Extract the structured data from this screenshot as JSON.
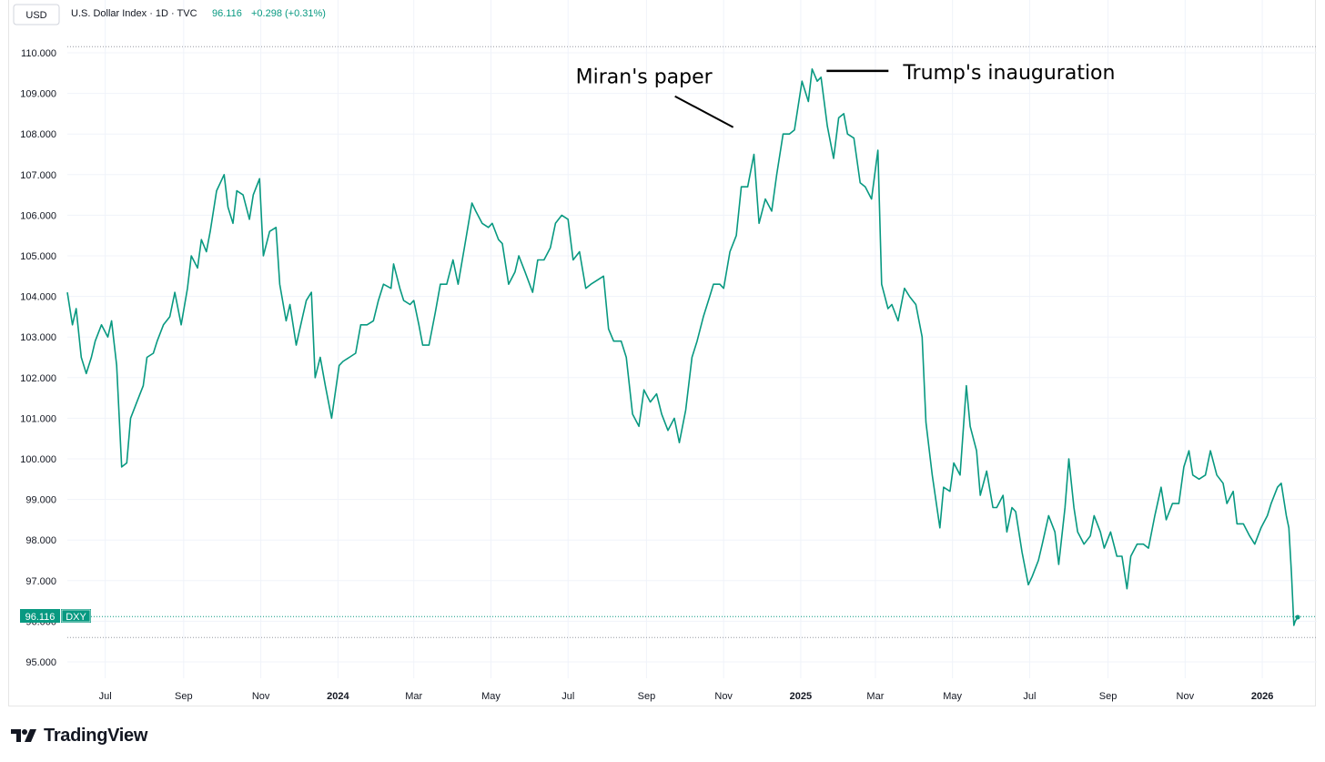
{
  "legend": {
    "currency": "USD",
    "symbol_info": "U.S. Dollar Index · 1D · TVC",
    "last": "96.116",
    "change": "+0.298 (+0.31%)"
  },
  "price_tag": {
    "value": "96.116",
    "ticker": "DXY"
  },
  "footer": {
    "brand": "TradingView"
  },
  "colors": {
    "line": "#089981",
    "text": "#131722",
    "grid": "#f0f3fa",
    "dotted": "#9598a1"
  },
  "chart_data": {
    "type": "line",
    "title": "U.S. Dollar Index · 1D · TVC",
    "series": [
      {
        "name": "DXY",
        "x_start": "2023-06-01",
        "x_end": "2026-01-29",
        "points": [
          [
            "2023-06-01",
            104.1
          ],
          [
            "2023-06-05",
            103.3
          ],
          [
            "2023-06-08",
            103.7
          ],
          [
            "2023-06-12",
            102.5
          ],
          [
            "2023-06-16",
            102.1
          ],
          [
            "2023-06-20",
            102.5
          ],
          [
            "2023-06-23",
            102.9
          ],
          [
            "2023-06-28",
            103.3
          ],
          [
            "2023-07-03",
            103.0
          ],
          [
            "2023-07-06",
            103.4
          ],
          [
            "2023-07-10",
            102.3
          ],
          [
            "2023-07-14",
            99.8
          ],
          [
            "2023-07-18",
            99.9
          ],
          [
            "2023-07-21",
            101.0
          ],
          [
            "2023-07-26",
            101.4
          ],
          [
            "2023-07-31",
            101.8
          ],
          [
            "2023-08-03",
            102.5
          ],
          [
            "2023-08-08",
            102.6
          ],
          [
            "2023-08-11",
            102.9
          ],
          [
            "2023-08-16",
            103.3
          ],
          [
            "2023-08-21",
            103.5
          ],
          [
            "2023-08-25",
            104.1
          ],
          [
            "2023-08-30",
            103.3
          ],
          [
            "2023-09-04",
            104.2
          ],
          [
            "2023-09-07",
            105.0
          ],
          [
            "2023-09-12",
            104.7
          ],
          [
            "2023-09-15",
            105.4
          ],
          [
            "2023-09-19",
            105.1
          ],
          [
            "2023-09-22",
            105.6
          ],
          [
            "2023-09-27",
            106.6
          ],
          [
            "2023-10-03",
            107.0
          ],
          [
            "2023-10-06",
            106.2
          ],
          [
            "2023-10-10",
            105.8
          ],
          [
            "2023-10-13",
            106.6
          ],
          [
            "2023-10-18",
            106.5
          ],
          [
            "2023-10-23",
            105.9
          ],
          [
            "2023-10-26",
            106.5
          ],
          [
            "2023-10-31",
            106.9
          ],
          [
            "2023-11-03",
            105.0
          ],
          [
            "2023-11-08",
            105.6
          ],
          [
            "2023-11-13",
            105.7
          ],
          [
            "2023-11-16",
            104.3
          ],
          [
            "2023-11-21",
            103.4
          ],
          [
            "2023-11-24",
            103.8
          ],
          [
            "2023-11-29",
            102.8
          ],
          [
            "2023-12-04",
            103.5
          ],
          [
            "2023-12-07",
            103.9
          ],
          [
            "2023-12-11",
            104.1
          ],
          [
            "2023-12-14",
            102.0
          ],
          [
            "2023-12-18",
            102.5
          ],
          [
            "2023-12-22",
            101.8
          ],
          [
            "2023-12-27",
            101.0
          ],
          [
            "2024-01-02",
            102.3
          ],
          [
            "2024-01-05",
            102.4
          ],
          [
            "2024-01-10",
            102.5
          ],
          [
            "2024-01-15",
            102.6
          ],
          [
            "2024-01-19",
            103.3
          ],
          [
            "2024-01-24",
            103.3
          ],
          [
            "2024-01-29",
            103.4
          ],
          [
            "2024-02-02",
            103.9
          ],
          [
            "2024-02-06",
            104.3
          ],
          [
            "2024-02-12",
            104.2
          ],
          [
            "2024-02-14",
            104.8
          ],
          [
            "2024-02-19",
            104.2
          ],
          [
            "2024-02-22",
            103.9
          ],
          [
            "2024-02-27",
            103.8
          ],
          [
            "2024-03-01",
            103.9
          ],
          [
            "2024-03-05",
            103.3
          ],
          [
            "2024-03-08",
            102.8
          ],
          [
            "2024-03-13",
            102.8
          ],
          [
            "2024-03-18",
            103.6
          ],
          [
            "2024-03-22",
            104.3
          ],
          [
            "2024-03-27",
            104.3
          ],
          [
            "2024-04-01",
            104.9
          ],
          [
            "2024-04-05",
            104.3
          ],
          [
            "2024-04-10",
            105.2
          ],
          [
            "2024-04-16",
            106.3
          ],
          [
            "2024-04-19",
            106.1
          ],
          [
            "2024-04-24",
            105.8
          ],
          [
            "2024-04-29",
            105.7
          ],
          [
            "2024-05-02",
            105.8
          ],
          [
            "2024-05-07",
            105.4
          ],
          [
            "2024-05-10",
            105.3
          ],
          [
            "2024-05-15",
            104.3
          ],
          [
            "2024-05-20",
            104.6
          ],
          [
            "2024-05-23",
            105.0
          ],
          [
            "2024-05-28",
            104.6
          ],
          [
            "2024-06-03",
            104.1
          ],
          [
            "2024-06-07",
            104.9
          ],
          [
            "2024-06-12",
            104.9
          ],
          [
            "2024-06-17",
            105.2
          ],
          [
            "2024-06-21",
            105.8
          ],
          [
            "2024-06-26",
            106.0
          ],
          [
            "2024-07-01",
            105.9
          ],
          [
            "2024-07-05",
            104.9
          ],
          [
            "2024-07-10",
            105.1
          ],
          [
            "2024-07-15",
            104.2
          ],
          [
            "2024-07-19",
            104.3
          ],
          [
            "2024-07-24",
            104.4
          ],
          [
            "2024-07-29",
            104.5
          ],
          [
            "2024-08-02",
            103.2
          ],
          [
            "2024-08-06",
            102.9
          ],
          [
            "2024-08-12",
            102.9
          ],
          [
            "2024-08-16",
            102.5
          ],
          [
            "2024-08-21",
            101.1
          ],
          [
            "2024-08-26",
            100.8
          ],
          [
            "2024-08-30",
            101.7
          ],
          [
            "2024-09-04",
            101.4
          ],
          [
            "2024-09-09",
            101.6
          ],
          [
            "2024-09-13",
            101.1
          ],
          [
            "2024-09-18",
            100.7
          ],
          [
            "2024-09-23",
            101.0
          ],
          [
            "2024-09-27",
            100.4
          ],
          [
            "2024-10-02",
            101.2
          ],
          [
            "2024-10-07",
            102.5
          ],
          [
            "2024-10-11",
            102.9
          ],
          [
            "2024-10-16",
            103.5
          ],
          [
            "2024-10-21",
            104.0
          ],
          [
            "2024-10-24",
            104.3
          ],
          [
            "2024-10-29",
            104.3
          ],
          [
            "2024-11-01",
            104.2
          ],
          [
            "2024-11-06",
            105.1
          ],
          [
            "2024-11-11",
            105.5
          ],
          [
            "2024-11-15",
            106.7
          ],
          [
            "2024-11-20",
            106.7
          ],
          [
            "2024-11-25",
            107.5
          ],
          [
            "2024-11-29",
            105.8
          ],
          [
            "2024-12-04",
            106.4
          ],
          [
            "2024-12-09",
            106.1
          ],
          [
            "2024-12-13",
            107.0
          ],
          [
            "2024-12-18",
            108.0
          ],
          [
            "2024-12-23",
            108.0
          ],
          [
            "2024-12-27",
            108.1
          ],
          [
            "2025-01-02",
            109.3
          ],
          [
            "2025-01-07",
            108.8
          ],
          [
            "2025-01-10",
            109.6
          ],
          [
            "2025-01-14",
            109.3
          ],
          [
            "2025-01-17",
            109.4
          ],
          [
            "2025-01-22",
            108.2
          ],
          [
            "2025-01-27",
            107.4
          ],
          [
            "2025-01-31",
            108.4
          ],
          [
            "2025-02-04",
            108.5
          ],
          [
            "2025-02-07",
            108.0
          ],
          [
            "2025-02-12",
            107.9
          ],
          [
            "2025-02-17",
            106.8
          ],
          [
            "2025-02-21",
            106.7
          ],
          [
            "2025-02-26",
            106.4
          ],
          [
            "2025-03-03",
            107.6
          ],
          [
            "2025-03-06",
            104.3
          ],
          [
            "2025-03-11",
            103.7
          ],
          [
            "2025-03-14",
            103.8
          ],
          [
            "2025-03-19",
            103.4
          ],
          [
            "2025-03-24",
            104.2
          ],
          [
            "2025-03-28",
            104.0
          ],
          [
            "2025-04-02",
            103.8
          ],
          [
            "2025-04-07",
            103.0
          ],
          [
            "2025-04-10",
            100.9
          ],
          [
            "2025-04-15",
            99.6
          ],
          [
            "2025-04-21",
            98.3
          ],
          [
            "2025-04-24",
            99.3
          ],
          [
            "2025-04-29",
            99.2
          ],
          [
            "2025-05-02",
            99.9
          ],
          [
            "2025-05-07",
            99.6
          ],
          [
            "2025-05-12",
            101.8
          ],
          [
            "2025-05-15",
            100.8
          ],
          [
            "2025-05-20",
            100.2
          ],
          [
            "2025-05-23",
            99.1
          ],
          [
            "2025-05-28",
            99.7
          ],
          [
            "2025-06-02",
            98.8
          ],
          [
            "2025-06-05",
            98.8
          ],
          [
            "2025-06-10",
            99.1
          ],
          [
            "2025-06-13",
            98.2
          ],
          [
            "2025-06-17",
            98.8
          ],
          [
            "2025-06-20",
            98.7
          ],
          [
            "2025-06-25",
            97.7
          ],
          [
            "2025-06-30",
            96.9
          ],
          [
            "2025-07-03",
            97.1
          ],
          [
            "2025-07-08",
            97.5
          ],
          [
            "2025-07-11",
            97.9
          ],
          [
            "2025-07-16",
            98.6
          ],
          [
            "2025-07-21",
            98.2
          ],
          [
            "2025-07-24",
            97.4
          ],
          [
            "2025-07-29",
            98.8
          ],
          [
            "2025-08-01",
            100.0
          ],
          [
            "2025-08-05",
            98.8
          ],
          [
            "2025-08-08",
            98.2
          ],
          [
            "2025-08-13",
            97.9
          ],
          [
            "2025-08-18",
            98.1
          ],
          [
            "2025-08-21",
            98.6
          ],
          [
            "2025-08-26",
            98.2
          ],
          [
            "2025-08-29",
            97.8
          ],
          [
            "2025-09-03",
            98.2
          ],
          [
            "2025-09-08",
            97.6
          ],
          [
            "2025-09-12",
            97.6
          ],
          [
            "2025-09-16",
            96.8
          ],
          [
            "2025-09-19",
            97.6
          ],
          [
            "2025-09-24",
            97.9
          ],
          [
            "2025-09-29",
            97.9
          ],
          [
            "2025-10-03",
            97.8
          ],
          [
            "2025-10-08",
            98.6
          ],
          [
            "2025-10-13",
            99.3
          ],
          [
            "2025-10-17",
            98.5
          ],
          [
            "2025-10-22",
            98.9
          ],
          [
            "2025-10-27",
            98.9
          ],
          [
            "2025-10-31",
            99.8
          ],
          [
            "2025-11-04",
            100.2
          ],
          [
            "2025-11-07",
            99.6
          ],
          [
            "2025-11-12",
            99.5
          ],
          [
            "2025-11-17",
            99.6
          ],
          [
            "2025-11-21",
            100.2
          ],
          [
            "2025-11-26",
            99.6
          ],
          [
            "2025-12-01",
            99.4
          ],
          [
            "2025-12-04",
            98.9
          ],
          [
            "2025-12-09",
            99.2
          ],
          [
            "2025-12-12",
            98.4
          ],
          [
            "2025-12-17",
            98.4
          ],
          [
            "2025-12-22",
            98.1
          ],
          [
            "2025-12-26",
            97.9
          ],
          [
            "2025-12-31",
            98.3
          ],
          [
            "2026-01-05",
            98.6
          ],
          [
            "2026-01-08",
            98.9
          ],
          [
            "2026-01-13",
            99.3
          ],
          [
            "2026-01-16",
            99.4
          ],
          [
            "2026-01-20",
            98.6
          ],
          [
            "2026-01-22",
            98.3
          ],
          [
            "2026-01-24",
            97.2
          ],
          [
            "2026-01-26",
            95.9
          ],
          [
            "2026-01-27",
            96.0
          ],
          [
            "2026-01-29",
            96.1
          ]
        ]
      }
    ],
    "y_ticks": [
      "110.000",
      "109.000",
      "108.000",
      "107.000",
      "106.000",
      "105.000",
      "104.000",
      "103.000",
      "102.000",
      "101.000",
      "100.000",
      "99.000",
      "98.000",
      "97.000",
      "96.000",
      "95.000"
    ],
    "ylim": [
      94.5,
      110.5
    ],
    "x_ticks": [
      {
        "label": "Jul",
        "date": "2023-07-01",
        "bold": false
      },
      {
        "label": "Sep",
        "date": "2023-09-01",
        "bold": false
      },
      {
        "label": "Nov",
        "date": "2023-11-01",
        "bold": false
      },
      {
        "label": "2024",
        "date": "2024-01-01",
        "bold": true
      },
      {
        "label": "Mar",
        "date": "2024-03-01",
        "bold": false
      },
      {
        "label": "May",
        "date": "2024-05-01",
        "bold": false
      },
      {
        "label": "Jul",
        "date": "2024-07-01",
        "bold": false
      },
      {
        "label": "Sep",
        "date": "2024-09-01",
        "bold": false
      },
      {
        "label": "Nov",
        "date": "2024-11-01",
        "bold": false
      },
      {
        "label": "2025",
        "date": "2025-01-01",
        "bold": true
      },
      {
        "label": "Mar",
        "date": "2025-03-01",
        "bold": false
      },
      {
        "label": "May",
        "date": "2025-05-01",
        "bold": false
      },
      {
        "label": "Jul",
        "date": "2025-07-01",
        "bold": false
      },
      {
        "label": "Sep",
        "date": "2025-09-01",
        "bold": false
      },
      {
        "label": "Nov",
        "date": "2025-11-01",
        "bold": false
      },
      {
        "label": "2026",
        "date": "2026-01-01",
        "bold": true
      }
    ],
    "reference_lines": [
      110.15,
      95.6
    ],
    "current_value": 96.116,
    "annotations": [
      {
        "text": "Miran's paper",
        "x": "2024-11-10",
        "y": 108.1,
        "placement": "above-left"
      },
      {
        "text": "Trump's inauguration",
        "x": "2025-01-20",
        "y": 109.6,
        "placement": "right"
      }
    ],
    "grid": true
  }
}
